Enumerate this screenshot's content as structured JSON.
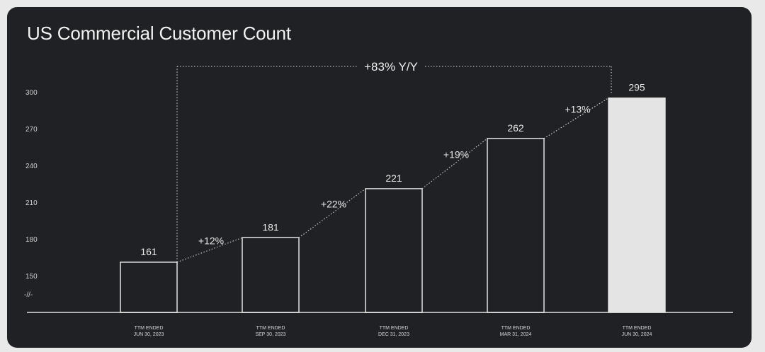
{
  "chart_data": {
    "type": "bar",
    "title": "US Commercial Customer Count",
    "categories": [
      [
        "TTM ENDED",
        "JUN 30, 2023"
      ],
      [
        "TTM ENDED",
        "SEP 30, 2023"
      ],
      [
        "TTM ENDED",
        "DEC 31, 2023"
      ],
      [
        "TTM ENDED",
        "MAR 31, 2024"
      ],
      [
        "TTM ENDED",
        "JUN 30, 2024"
      ]
    ],
    "values": [
      161,
      181,
      221,
      262,
      295
    ],
    "highlight_index": 4,
    "growth_labels": [
      "+12%",
      "+22%",
      "+19%",
      "+13%"
    ],
    "yoy_label": "+83% Y/Y",
    "y_ticks": [
      150,
      180,
      210,
      240,
      270,
      300
    ],
    "axis_break_label": "-//-",
    "ylim": [
      130,
      300
    ],
    "grid": false,
    "colors": {
      "background": "#1f2124",
      "bar_outline": "#f2f2f2",
      "highlight_fill": "#e4e4e4",
      "text": "#e8e8e8"
    }
  }
}
